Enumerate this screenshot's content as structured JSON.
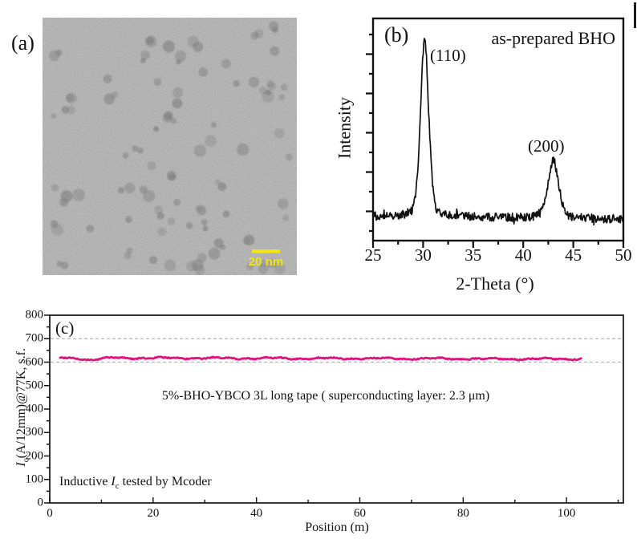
{
  "panel_a": {
    "label": "(a)",
    "scale_bar_label": "20 nm",
    "scale_bar_color": "#F4E50F"
  },
  "panel_c": {
    "footnote_pre": "Inductive ",
    "footnote_italic": "I",
    "footnote_sub": "c",
    "footnote_rest": " tested by Mcoder",
    "ylabel_italic": "I",
    "ylabel_sub": "c",
    "ylabel_rest": "(A/12mm)@77K, s.f."
  },
  "colors": {
    "axis_black": "#111111",
    "xrd_curve": "#111111",
    "ic_line_pink": "#E2117E",
    "gridline_gray": "#b4b4b4",
    "tem_base_gray": "#ACACAC",
    "particle_gray": "#3C3C3C"
  },
  "chart_data": [
    {
      "id": "xrd-pattern",
      "type": "line",
      "panel_label": "(b)",
      "annotation": "as-prepared BHO",
      "xlabel": "2-Theta (°)",
      "ylabel": "Intensity",
      "xlim": [
        25,
        50
      ],
      "x_major_ticks": [
        25,
        30,
        35,
        40,
        45,
        50
      ],
      "x_minor_ticks": [
        27.5,
        32.5,
        37.5,
        42.5,
        47.5
      ],
      "y_axis_note": "arbitrary intensity, unlabeled ticks",
      "series": [
        {
          "name": "as-prepared BHO",
          "color": "#111111",
          "baseline_rel_left": 0.112,
          "baseline_rel_right": 0.097,
          "noise_rel": 0.038,
          "peaks": [
            {
              "label": "(110)",
              "center": 30.15,
              "height_rel": 0.8,
              "sigma": 0.42
            },
            {
              "label": "(200)",
              "center": 43.0,
              "height_rel": 0.26,
              "sigma": 0.55
            }
          ]
        }
      ]
    },
    {
      "id": "ic-profile",
      "type": "line",
      "panel_label": "(c)",
      "annotation": "5%-BHO-YBCO 3L long tape ( superconducting layer: 2.3 μm)",
      "footnote": "Inductive Ic tested by Mcoder",
      "xlabel": "Position (m)",
      "ylabel": "Ic(A/12mm)@77K, s.f.",
      "xlim": [
        0,
        111
      ],
      "ylim": [
        0,
        800
      ],
      "x_major_ticks": [
        0,
        20,
        40,
        60,
        80,
        100
      ],
      "x_minor_step": 10,
      "y_major_ticks": [
        800,
        700,
        600,
        500,
        400,
        300,
        200,
        100,
        0
      ],
      "y_minor_step": 50,
      "gridlines_y": [
        700,
        600
      ],
      "series": [
        {
          "name": "5%-BHO-YBCO 3L long tape",
          "color": "#E2117E",
          "x_start": 2,
          "x_end": 103,
          "mean_ic": 618,
          "min_ic": 606,
          "max_ic": 627,
          "shape": "flat uniform band just above 600 A gridline with small dip near 8 m"
        }
      ]
    }
  ]
}
